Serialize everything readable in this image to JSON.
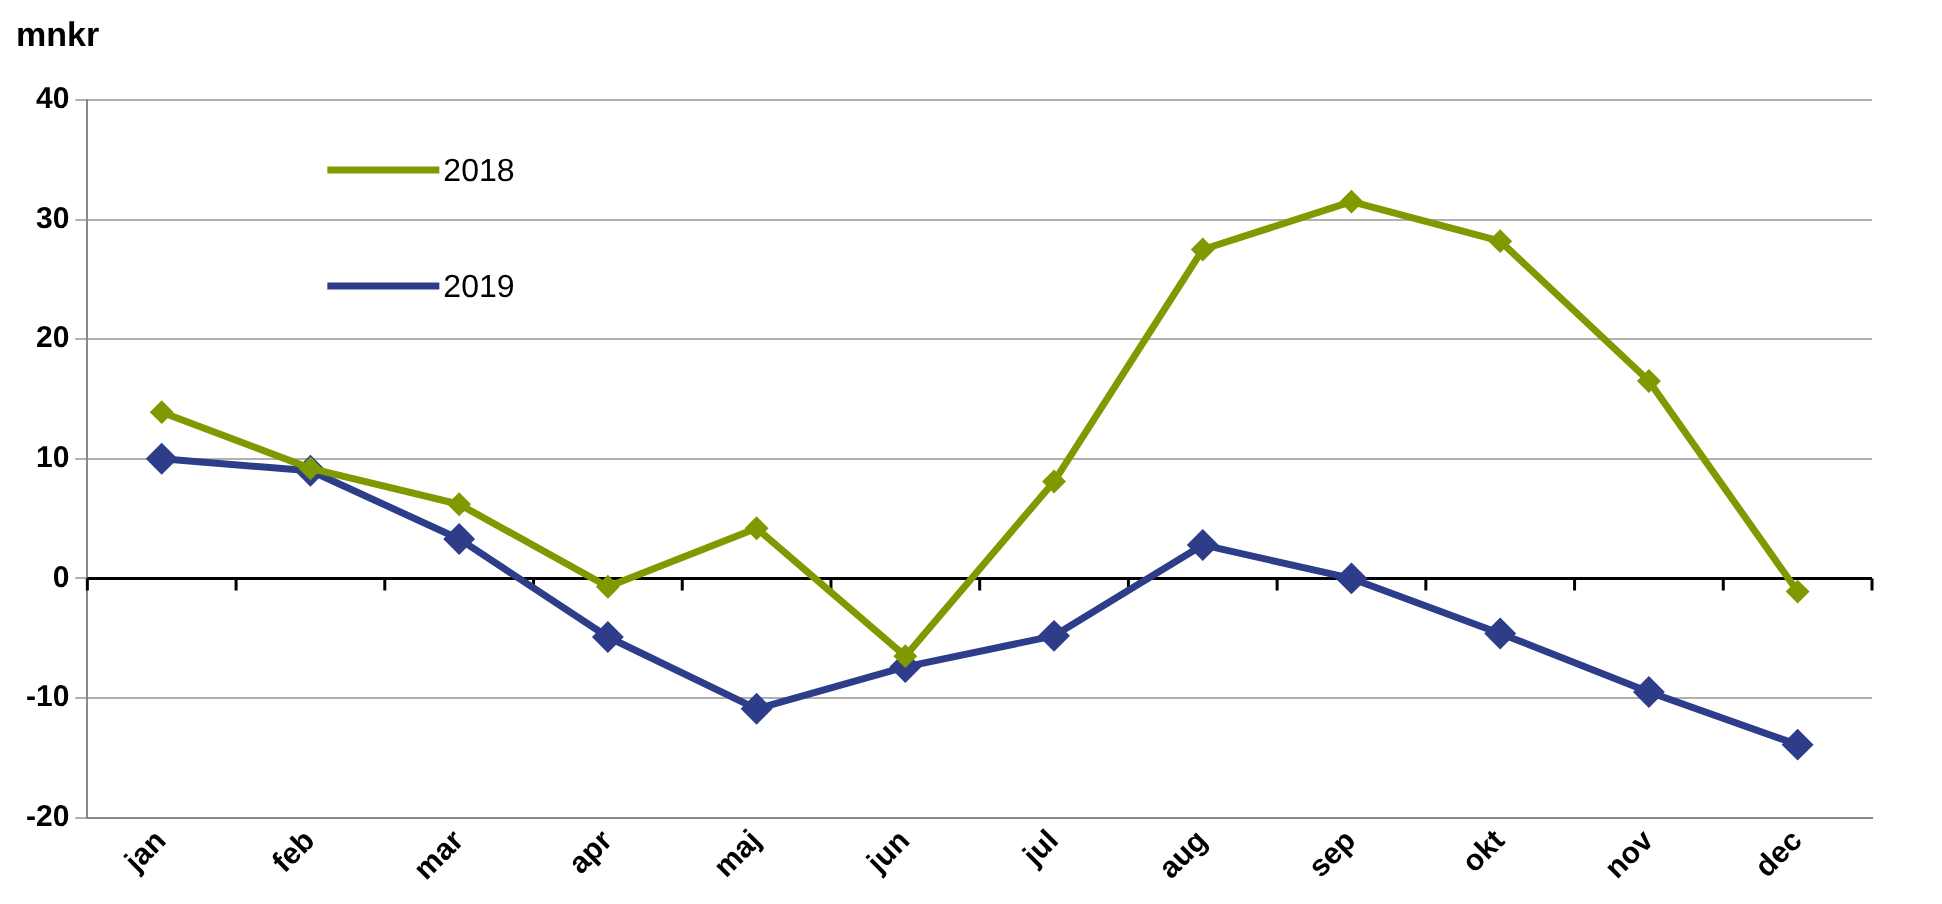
{
  "chart_data": {
    "type": "line",
    "ylabel": "mnkr",
    "categories": [
      "jan",
      "feb",
      "mar",
      "apr",
      "maj",
      "jun",
      "jul",
      "aug",
      "sep",
      "okt",
      "nov",
      "dec"
    ],
    "series": [
      {
        "name": "2018",
        "color": "#7f9a00",
        "values": [
          13.9,
          9.2,
          6.2,
          -0.7,
          4.2,
          -6.5,
          8.1,
          27.5,
          31.5,
          28.2,
          16.5,
          -1.1
        ]
      },
      {
        "name": "2019",
        "color": "#2e3d8a",
        "values": [
          10,
          9,
          3.3,
          -4.9,
          -10.9,
          -7.4,
          -4.8,
          2.8,
          0,
          -4.6,
          -9.5,
          -13.9
        ]
      }
    ],
    "ylim": [
      -20,
      40
    ],
    "yticks": [
      -20,
      -10,
      0,
      10,
      20,
      30,
      40
    ],
    "grid": "y",
    "legend": "top left",
    "marker": "diamond",
    "line_style": "solid"
  }
}
